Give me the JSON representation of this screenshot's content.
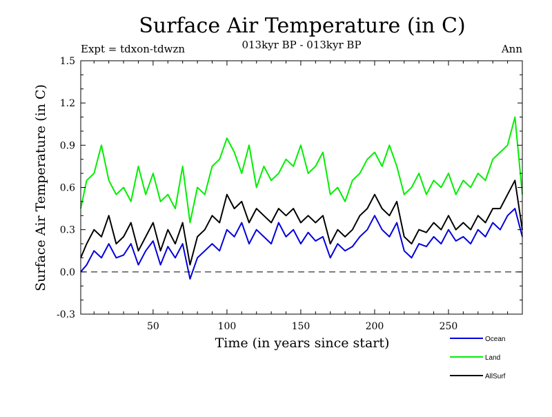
{
  "chart_data": {
    "type": "line",
    "title": "Surface Air Temperature (in C)",
    "subtitle": "013kyr BP - 013kyr BP",
    "annotation_left": "Expt = tdxon-tdwzn",
    "annotation_right": "Ann",
    "xlabel": "Time (in years since start)",
    "ylabel": "Surface Air Temperature (in C)",
    "xlim": [
      1,
      300
    ],
    "ylim": [
      -0.3,
      1.5
    ],
    "xticks": [
      50,
      100,
      150,
      200,
      250
    ],
    "xtick_labels": [
      "50",
      "100",
      "150",
      "200",
      "250"
    ],
    "yticks": [
      -0.3,
      0.0,
      0.3,
      0.6,
      0.9,
      1.2,
      1.5
    ],
    "ytick_labels": [
      "-0.3",
      "0.0",
      "0.3",
      "0.6",
      "0.9",
      "1.2",
      "1.5"
    ],
    "reference_line": 0.0,
    "legend_position": "bottom-right",
    "series": [
      {
        "name": "Ocean",
        "color": "#0000dd",
        "x": [
          1,
          5,
          10,
          15,
          20,
          25,
          30,
          35,
          40,
          45,
          50,
          55,
          60,
          65,
          70,
          75,
          80,
          85,
          90,
          95,
          100,
          105,
          110,
          115,
          120,
          125,
          130,
          135,
          140,
          145,
          150,
          155,
          160,
          165,
          170,
          175,
          180,
          185,
          190,
          195,
          200,
          205,
          210,
          215,
          220,
          225,
          230,
          235,
          240,
          245,
          250,
          255,
          260,
          265,
          270,
          275,
          280,
          285,
          290,
          295,
          300
        ],
        "values": [
          0.0,
          0.05,
          0.15,
          0.1,
          0.2,
          0.1,
          0.12,
          0.2,
          0.05,
          0.15,
          0.22,
          0.05,
          0.18,
          0.1,
          0.2,
          -0.05,
          0.1,
          0.15,
          0.2,
          0.15,
          0.3,
          0.25,
          0.35,
          0.2,
          0.3,
          0.25,
          0.2,
          0.35,
          0.25,
          0.3,
          0.2,
          0.28,
          0.22,
          0.25,
          0.1,
          0.2,
          0.15,
          0.18,
          0.25,
          0.3,
          0.4,
          0.3,
          0.25,
          0.35,
          0.15,
          0.1,
          0.2,
          0.18,
          0.25,
          0.2,
          0.3,
          0.22,
          0.25,
          0.2,
          0.3,
          0.25,
          0.35,
          0.3,
          0.4,
          0.45,
          0.25
        ]
      },
      {
        "name": "Land",
        "color": "#00ee00",
        "x": [
          1,
          5,
          10,
          15,
          20,
          25,
          30,
          35,
          40,
          45,
          50,
          55,
          60,
          65,
          70,
          75,
          80,
          85,
          90,
          95,
          100,
          105,
          110,
          115,
          120,
          125,
          130,
          135,
          140,
          145,
          150,
          155,
          160,
          165,
          170,
          175,
          180,
          185,
          190,
          195,
          200,
          205,
          210,
          215,
          220,
          225,
          230,
          235,
          240,
          245,
          250,
          255,
          260,
          265,
          270,
          275,
          280,
          285,
          290,
          295,
          300
        ],
        "values": [
          0.45,
          0.65,
          0.7,
          0.9,
          0.65,
          0.55,
          0.6,
          0.5,
          0.75,
          0.55,
          0.7,
          0.5,
          0.55,
          0.45,
          0.75,
          0.35,
          0.6,
          0.55,
          0.75,
          0.8,
          0.95,
          0.85,
          0.7,
          0.9,
          0.6,
          0.75,
          0.65,
          0.7,
          0.8,
          0.75,
          0.9,
          0.7,
          0.75,
          0.85,
          0.55,
          0.6,
          0.5,
          0.65,
          0.7,
          0.8,
          0.85,
          0.75,
          0.9,
          0.75,
          0.55,
          0.6,
          0.7,
          0.55,
          0.65,
          0.6,
          0.7,
          0.55,
          0.65,
          0.6,
          0.7,
          0.65,
          0.8,
          0.85,
          0.9,
          1.1,
          0.55
        ]
      },
      {
        "name": "AllSurf",
        "color": "#000000",
        "x": [
          1,
          5,
          10,
          15,
          20,
          25,
          30,
          35,
          40,
          45,
          50,
          55,
          60,
          65,
          70,
          75,
          80,
          85,
          90,
          95,
          100,
          105,
          110,
          115,
          120,
          125,
          130,
          135,
          140,
          145,
          150,
          155,
          160,
          165,
          170,
          175,
          180,
          185,
          190,
          195,
          200,
          205,
          210,
          215,
          220,
          225,
          230,
          235,
          240,
          245,
          250,
          255,
          260,
          265,
          270,
          275,
          280,
          285,
          290,
          295,
          300
        ],
        "values": [
          0.1,
          0.2,
          0.3,
          0.25,
          0.4,
          0.2,
          0.25,
          0.35,
          0.15,
          0.25,
          0.35,
          0.15,
          0.3,
          0.2,
          0.35,
          0.05,
          0.25,
          0.3,
          0.4,
          0.35,
          0.55,
          0.45,
          0.5,
          0.35,
          0.45,
          0.4,
          0.35,
          0.45,
          0.4,
          0.45,
          0.35,
          0.4,
          0.35,
          0.4,
          0.2,
          0.3,
          0.25,
          0.3,
          0.4,
          0.45,
          0.55,
          0.45,
          0.4,
          0.5,
          0.25,
          0.2,
          0.3,
          0.28,
          0.35,
          0.3,
          0.4,
          0.3,
          0.35,
          0.3,
          0.4,
          0.35,
          0.45,
          0.45,
          0.55,
          0.65,
          0.3
        ]
      }
    ]
  }
}
